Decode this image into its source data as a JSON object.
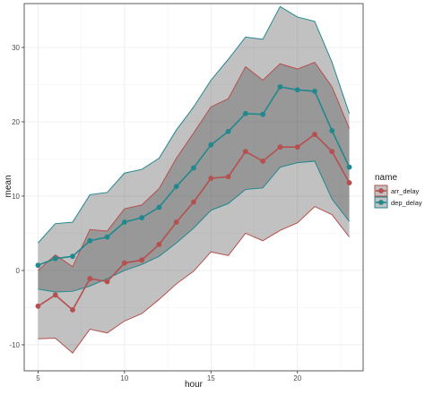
{
  "chart_data": {
    "type": "line",
    "xlabel": "hour",
    "ylabel": "mean",
    "xlim": [
      4.2,
      23.8
    ],
    "ylim": [
      -13.5,
      35.9
    ],
    "x_ticks": [
      5,
      10,
      15,
      20
    ],
    "y_ticks": [
      -10,
      0,
      10,
      20,
      30
    ],
    "grid": true,
    "legend": {
      "title": "name",
      "position": "right"
    },
    "x": [
      5,
      6,
      7,
      8,
      9,
      10,
      11,
      12,
      13,
      14,
      15,
      16,
      17,
      18,
      19,
      20,
      21,
      22,
      23
    ],
    "series": [
      {
        "name": "arr_delay",
        "color": "#b5504e",
        "values": [
          -4.8,
          -3.3,
          -5.3,
          -1.1,
          -1.5,
          1.0,
          1.4,
          3.5,
          6.5,
          9.2,
          12.4,
          12.6,
          16.0,
          14.7,
          16.6,
          16.6,
          18.3,
          16.0,
          11.8
        ],
        "lower": [
          -9.2,
          -9.1,
          -11.1,
          -7.9,
          -8.4,
          -6.8,
          -5.8,
          -3.9,
          -1.8,
          -0.1,
          2.5,
          2.0,
          5.0,
          4.0,
          5.4,
          6.4,
          8.6,
          7.5,
          4.5
        ],
        "upper": [
          0.0,
          2.1,
          0.5,
          5.5,
          5.3,
          8.3,
          8.8,
          11.0,
          15.1,
          18.5,
          22.0,
          23.1,
          27.4,
          25.6,
          27.8,
          27.1,
          28.0,
          24.7,
          19.1
        ]
      },
      {
        "name": "dep_delay",
        "color": "#21888e",
        "values": [
          0.7,
          1.6,
          1.9,
          4.0,
          4.5,
          6.5,
          7.1,
          8.5,
          11.3,
          13.8,
          16.9,
          18.7,
          21.1,
          21.0,
          24.7,
          24.3,
          24.1,
          18.8,
          13.9
        ],
        "lower": [
          -2.5,
          -2.9,
          -2.8,
          -2.1,
          -1.1,
          0.0,
          0.8,
          1.9,
          3.7,
          5.7,
          8.1,
          9.0,
          10.9,
          11.1,
          13.9,
          14.5,
          14.7,
          9.6,
          6.6
        ],
        "upper": [
          3.7,
          6.3,
          6.5,
          10.2,
          10.5,
          13.1,
          13.6,
          15.1,
          18.9,
          22.0,
          25.6,
          28.4,
          31.4,
          31.1,
          35.5,
          34.1,
          33.5,
          28.0,
          21.1
        ]
      }
    ]
  }
}
